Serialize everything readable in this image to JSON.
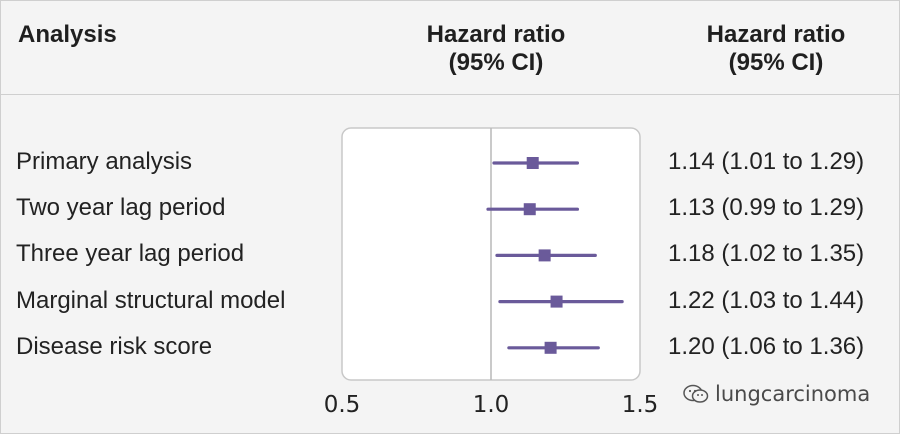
{
  "header": {
    "analysis": "Analysis",
    "hr_line1": "Hazard ratio",
    "hr_line2": "(95% CI)",
    "ci_line1": "Hazard ratio",
    "ci_line2": "(95% CI)"
  },
  "chart_data": {
    "type": "forest",
    "xlim": [
      0.5,
      1.5
    ],
    "reference_line": 1.0,
    "xticks": [
      "0.5",
      "1.0",
      "1.5"
    ],
    "rows": [
      {
        "label": "Primary analysis",
        "hr": 1.14,
        "lo": 1.01,
        "hi": 1.29,
        "text": "1.14 (1.01 to 1.29)"
      },
      {
        "label": "Two year lag period",
        "hr": 1.13,
        "lo": 0.99,
        "hi": 1.29,
        "text": "1.13 (0.99 to 1.29)"
      },
      {
        "label": "Three year lag period",
        "hr": 1.18,
        "lo": 1.02,
        "hi": 1.35,
        "text": "1.18 (1.02 to 1.35)"
      },
      {
        "label": "Marginal structural model",
        "hr": 1.22,
        "lo": 1.03,
        "hi": 1.44,
        "text": "1.22 (1.03 to 1.44)"
      },
      {
        "label": "Disease risk score",
        "hr": 1.2,
        "lo": 1.06,
        "hi": 1.36,
        "text": "1.20 (1.06 to 1.36)"
      }
    ],
    "colors": {
      "marker": "#6a5a9a",
      "panel_border": "#c8c8c8",
      "reference": "#b9b9b9"
    }
  },
  "watermark": "lungcarcinoma"
}
